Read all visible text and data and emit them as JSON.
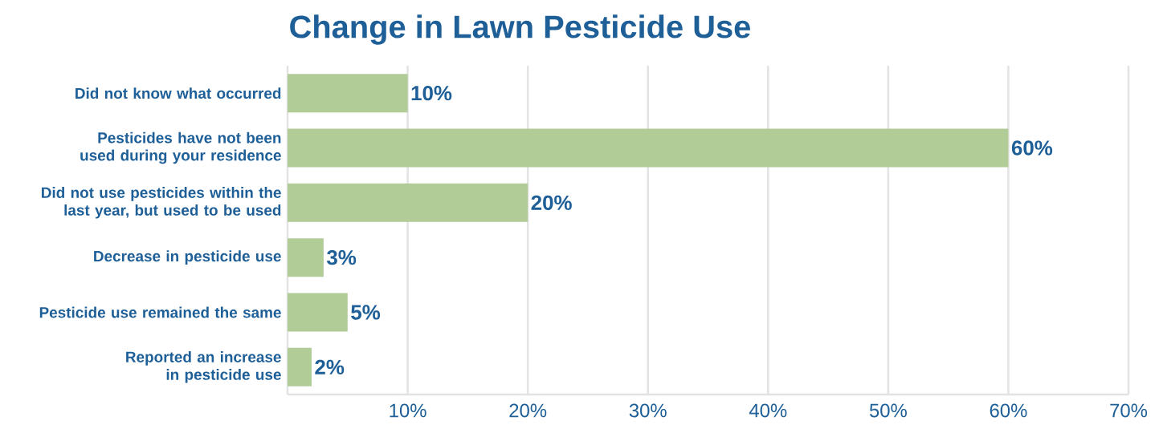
{
  "chart_data": {
    "type": "bar",
    "orientation": "horizontal",
    "title": "Change in Lawn Pesticide Use",
    "categories": [
      "Did not know what occurred",
      "Pesticides have not been used during your residence",
      "Did not use pesticides within the last year, but used to be used",
      "Decrease in pesticide use",
      "Pesticide use remained the same",
      "Reported an increase in pesticide use"
    ],
    "values": [
      10,
      60,
      20,
      3,
      5,
      2
    ],
    "value_labels": [
      "10%",
      "60%",
      "20%",
      "3%",
      "5%",
      "2%"
    ],
    "color": "#b1cc97",
    "xlim": [
      0,
      70
    ],
    "xticks": [
      {
        "value": 10,
        "label": "10%"
      },
      {
        "value": 20,
        "label": "20%"
      },
      {
        "value": 30,
        "label": "30%"
      },
      {
        "value": 40,
        "label": "40%"
      },
      {
        "value": 50,
        "label": "50%"
      },
      {
        "value": 60,
        "label": "60%"
      },
      {
        "value": 70,
        "label": "70%"
      }
    ],
    "grid": "x"
  }
}
